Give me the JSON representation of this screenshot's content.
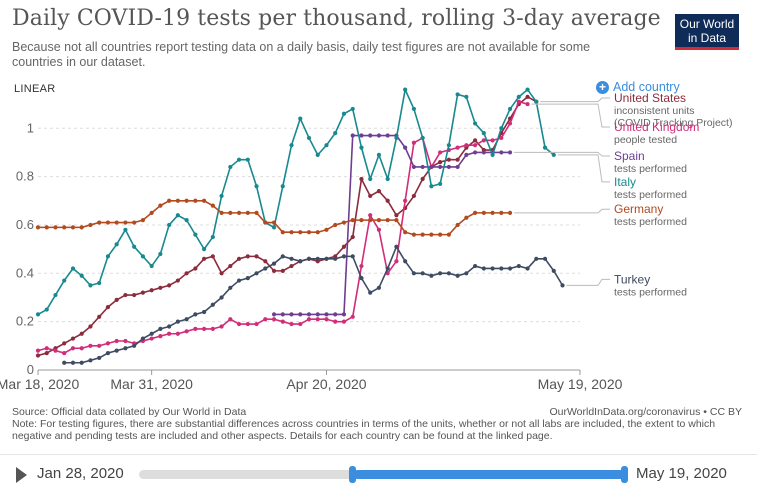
{
  "header": {
    "title": "Daily COVID-19 tests per thousand, rolling 3-day average",
    "subtitle": "Because not all countries report testing data on a daily basis, daily test figures are not available for some countries in our dataset.",
    "logo_line1": "Our World",
    "logo_line2": "in Data"
  },
  "controls": {
    "scale": "LINEAR",
    "add_country": "Add country"
  },
  "footer": {
    "source": "Source: Official data collated by Our World in Data",
    "url": "OurWorldInData.org/coronavirus • CC BY",
    "note": "Note: For testing figures, there are substantial differences across countries in terms of the units, whether or not all labs are included, the extent to which negative and pending tests are included and other aspects. Details for each country can be found at the linked page."
  },
  "timeline": {
    "start_label": "Jan 28, 2020",
    "end_label": "May 19, 2020"
  },
  "chart_data": {
    "type": "line",
    "title": "Daily COVID-19 tests per thousand, rolling 3-day average",
    "ylim": [
      0,
      1.15
    ],
    "y_ticks": [
      0,
      0.2,
      0.4,
      0.6,
      0.8,
      1
    ],
    "y_tick_labels": [
      "0",
      "0.2",
      "0.4",
      "0.6",
      "0.8",
      "1"
    ],
    "x_range_days": [
      0,
      62
    ],
    "x_ticks": [
      {
        "day": 0,
        "label": "Mar 18, 2020"
      },
      {
        "day": 13,
        "label": "Mar 31, 2020"
      },
      {
        "day": 33,
        "label": "Apr 20, 2020"
      },
      {
        "day": 62,
        "label": "May 19, 2020"
      }
    ],
    "series": [
      {
        "name": "United States",
        "sublabel": "inconsistent units (COVID Tracking Project)",
        "color": "#8c2b3c",
        "label_y": 1.125,
        "start_day": 0,
        "values": [
          0.06,
          0.07,
          0.09,
          0.11,
          0.13,
          0.15,
          0.18,
          0.22,
          0.26,
          0.29,
          0.31,
          0.31,
          0.32,
          0.33,
          0.34,
          0.35,
          0.37,
          0.4,
          0.42,
          0.46,
          0.47,
          0.4,
          0.43,
          0.46,
          0.47,
          0.47,
          0.45,
          0.41,
          0.41,
          0.43,
          0.45,
          0.46,
          0.45,
          0.46,
          0.47,
          0.51,
          0.55,
          0.79,
          0.72,
          0.74,
          0.7,
          0.64,
          0.67,
          0.72,
          0.79,
          0.84,
          0.86,
          0.87,
          0.87,
          0.92,
          0.95,
          0.91,
          0.91,
          0.98,
          1.04,
          1.1,
          1.13,
          1.11
        ]
      },
      {
        "name": "United Kingdom",
        "sublabel": "people tested",
        "color": "#d12d79",
        "label_y": 1.005,
        "start_day": 0,
        "values": [
          0.08,
          0.09,
          0.08,
          0.07,
          0.09,
          0.09,
          0.1,
          0.1,
          0.11,
          0.12,
          0.12,
          0.11,
          0.12,
          0.13,
          0.14,
          0.15,
          0.15,
          0.16,
          0.17,
          0.17,
          0.17,
          0.18,
          0.21,
          0.19,
          0.19,
          0.19,
          0.21,
          0.21,
          0.2,
          0.19,
          0.19,
          0.21,
          0.21,
          0.21,
          0.2,
          0.2,
          0.22,
          0.43,
          0.64,
          0.58,
          0.4,
          0.45,
          0.7,
          0.94,
          0.96,
          0.84,
          0.9,
          0.91,
          0.92,
          0.93,
          0.93,
          0.95,
          0.95,
          0.96,
          1.02,
          1.11,
          1.1
        ]
      },
      {
        "name": "Spain",
        "sublabel": "tests performed",
        "color": "#6d3e91",
        "label_y": 0.885,
        "start_day": 27,
        "values": [
          0.23,
          0.23,
          0.23,
          0.23,
          0.23,
          0.23,
          0.23,
          0.23,
          0.23,
          0.97,
          0.97,
          0.97,
          0.97,
          0.97,
          0.97,
          0.92,
          0.84,
          0.84,
          0.84,
          0.84,
          0.84,
          0.84,
          0.89,
          0.9,
          0.9,
          0.9,
          0.9,
          0.9
        ]
      },
      {
        "name": "Italy",
        "sublabel": "tests performed",
        "color": "#18898e",
        "label_y": 0.778,
        "start_day": 0,
        "values": [
          0.23,
          0.25,
          0.31,
          0.37,
          0.42,
          0.39,
          0.35,
          0.36,
          0.47,
          0.52,
          0.58,
          0.51,
          0.47,
          0.43,
          0.48,
          0.6,
          0.64,
          0.62,
          0.56,
          0.5,
          0.55,
          0.72,
          0.84,
          0.87,
          0.87,
          0.76,
          0.61,
          0.59,
          0.76,
          0.93,
          1.04,
          0.96,
          0.89,
          0.93,
          0.98,
          1.06,
          1.08,
          0.92,
          0.79,
          0.89,
          0.79,
          0.96,
          1.16,
          1.08,
          0.96,
          0.76,
          0.77,
          0.93,
          1.14,
          1.13,
          1.02,
          0.98,
          0.89,
          1.0,
          1.08,
          1.13,
          1.16,
          1.11,
          0.92,
          0.89
        ]
      },
      {
        "name": "Germany",
        "sublabel": "tests performed",
        "color": "#b34a1e",
        "label_y": 0.665,
        "start_day": 0,
        "values": [
          0.59,
          0.59,
          0.59,
          0.59,
          0.59,
          0.59,
          0.6,
          0.61,
          0.61,
          0.61,
          0.61,
          0.61,
          0.62,
          0.65,
          0.68,
          0.7,
          0.7,
          0.7,
          0.7,
          0.7,
          0.68,
          0.65,
          0.65,
          0.65,
          0.65,
          0.65,
          0.61,
          0.61,
          0.57,
          0.57,
          0.57,
          0.57,
          0.57,
          0.58,
          0.6,
          0.61,
          0.62,
          0.62,
          0.62,
          0.62,
          0.62,
          0.62,
          0.57,
          0.56,
          0.56,
          0.56,
          0.56,
          0.56,
          0.6,
          0.63,
          0.65,
          0.65,
          0.65,
          0.65,
          0.65
        ]
      },
      {
        "name": "Turkey",
        "sublabel": "tests performed",
        "color": "#3e4b62",
        "label_y": 0.375,
        "start_day": 3,
        "values": [
          0.03,
          0.03,
          0.03,
          0.04,
          0.05,
          0.07,
          0.08,
          0.09,
          0.1,
          0.13,
          0.15,
          0.17,
          0.18,
          0.2,
          0.21,
          0.23,
          0.24,
          0.27,
          0.3,
          0.34,
          0.37,
          0.38,
          0.4,
          0.42,
          0.44,
          0.47,
          0.46,
          0.45,
          0.46,
          0.46,
          0.46,
          0.46,
          0.47,
          0.47,
          0.38,
          0.32,
          0.34,
          0.42,
          0.51,
          0.45,
          0.4,
          0.4,
          0.39,
          0.4,
          0.4,
          0.39,
          0.4,
          0.43,
          0.42,
          0.42,
          0.42,
          0.42,
          0.43,
          0.42,
          0.46,
          0.46,
          0.41,
          0.35
        ]
      }
    ]
  }
}
